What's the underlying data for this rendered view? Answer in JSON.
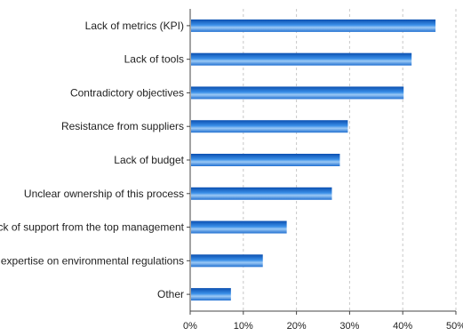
{
  "chart_data": {
    "type": "bar",
    "orientation": "horizontal",
    "categories": [
      "Lack of metrics (KPI)",
      "Lack of tools",
      "Contradictory objectives",
      "Resistance from suppliers",
      "Lack of budget",
      "Unclear ownership of this process",
      "Lack of support from the top management",
      "Lack of expertise on environmental regulations",
      "Other"
    ],
    "values": [
      46,
      41.5,
      40,
      29.5,
      28,
      26.5,
      18,
      13.5,
      7.5
    ],
    "xlim": [
      0,
      50
    ],
    "ticks": [
      "0%",
      "10%",
      "20%",
      "30%",
      "40%",
      "50%"
    ],
    "grid": true,
    "bar_color": "#1f6fd1"
  }
}
